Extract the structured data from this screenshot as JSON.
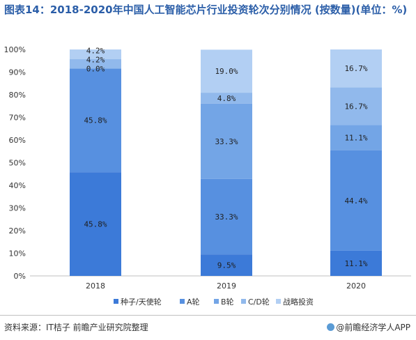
{
  "title": "图表14：2018-2020年中国人工智能芯片行业投资轮次分别情况 (按数量)(单位：%)",
  "source": "资料来源：IT桔子 前瞻产业研究院整理",
  "brand": "@前瞻经济学人APP",
  "colors": {
    "seed_angel": "#3c7ad8",
    "round_a": "#5790e0",
    "round_b": "#73a5e6",
    "round_cd": "#91b9ec",
    "strategic": "#b2cff3"
  },
  "chart_data": {
    "type": "bar",
    "stacked": true,
    "categories": [
      "2018",
      "2019",
      "2020"
    ],
    "ylim": [
      0,
      100
    ],
    "yticks": [
      "0%",
      "10%",
      "20%",
      "30%",
      "40%",
      "50%",
      "60%",
      "70%",
      "80%",
      "90%",
      "100%"
    ],
    "xlabel": "",
    "ylabel": "",
    "grid": false,
    "legend_position": "bottom",
    "series": [
      {
        "name": "种子/天使轮",
        "values": [
          45.8,
          9.5,
          11.1
        ],
        "labels": [
          "45.8%",
          "9.5%",
          "11.1%"
        ]
      },
      {
        "name": "A轮",
        "values": [
          45.8,
          33.3,
          44.4
        ],
        "labels": [
          "45.8%",
          "33.3%",
          "44.4%"
        ]
      },
      {
        "name": "B轮",
        "values": [
          0.0,
          33.3,
          11.1
        ],
        "labels": [
          "0.0%",
          "33.3%",
          "11.1%"
        ]
      },
      {
        "name": "C/D轮",
        "values": [
          4.2,
          4.8,
          16.7
        ],
        "labels": [
          "4.2%",
          "4.8%",
          "16.7%"
        ]
      },
      {
        "name": "战略投资",
        "values": [
          4.2,
          19.0,
          16.7
        ],
        "labels": [
          "4.2%",
          "19.0%",
          "16.7%"
        ]
      }
    ]
  }
}
